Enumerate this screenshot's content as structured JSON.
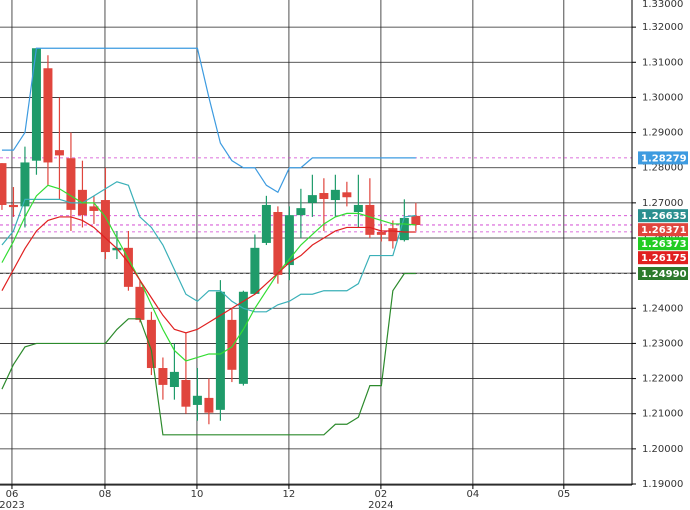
{
  "chart_data": {
    "type": "candlestick",
    "x": [
      0,
      1,
      2,
      3,
      4,
      5,
      6,
      7,
      8,
      9,
      10,
      11,
      12,
      13,
      14,
      15,
      16,
      17,
      18,
      19,
      20,
      21,
      22,
      23,
      24,
      25,
      26,
      27,
      28,
      29,
      30,
      31,
      32,
      33,
      34,
      35,
      36
    ],
    "candles": {
      "up_color": "#1f9b6a",
      "down_color": "#e0453d",
      "open": [
        1.2813,
        1.2694,
        1.269,
        1.282,
        1.3083,
        1.285,
        1.2827,
        1.2737,
        1.269,
        1.2708,
        1.2565,
        1.2572,
        1.2461,
        1.2367,
        1.223,
        1.2176,
        1.2196,
        1.2125,
        1.2145,
        1.2111,
        1.2367,
        1.2185,
        1.2441,
        1.2586,
        1.2674,
        1.2523,
        1.2665,
        1.27,
        1.2728,
        1.2708,
        1.273,
        1.2674,
        1.2694,
        1.2617,
        1.2628,
        1.2594,
        1.2663
      ],
      "high": [
        1.2813,
        1.2745,
        1.286,
        1.314,
        1.312,
        1.3,
        1.29,
        1.282,
        1.272,
        1.28,
        1.262,
        1.262,
        1.248,
        1.239,
        1.226,
        1.23,
        1.233,
        1.223,
        1.22,
        1.248,
        1.24,
        1.245,
        1.261,
        1.272,
        1.269,
        1.269,
        1.274,
        1.278,
        1.277,
        1.278,
        1.276,
        1.278,
        1.277,
        1.264,
        1.265,
        1.271,
        1.27
      ],
      "low": [
        1.268,
        1.266,
        1.263,
        1.278,
        1.275,
        1.271,
        1.262,
        1.263,
        1.264,
        1.254,
        1.254,
        1.245,
        1.236,
        1.221,
        1.214,
        1.214,
        1.21,
        1.208,
        1.207,
        1.208,
        1.219,
        1.218,
        1.244,
        1.258,
        1.247,
        1.248,
        1.26,
        1.266,
        1.262,
        1.266,
        1.269,
        1.263,
        1.26,
        1.259,
        1.257,
        1.259,
        1.262
      ],
      "close": [
        1.2694,
        1.2688,
        1.2815,
        1.314,
        1.2815,
        1.2835,
        1.268,
        1.2665,
        1.2677,
        1.256,
        1.2572,
        1.2461,
        1.2367,
        1.223,
        1.2182,
        1.2219,
        1.212,
        1.2151,
        1.2103,
        1.2447,
        1.2225,
        1.2447,
        1.2572,
        1.2694,
        1.2495,
        1.2665,
        1.2685,
        1.2722,
        1.2711,
        1.2737,
        1.2716,
        1.2694,
        1.2609,
        1.2609,
        1.2591,
        1.2657,
        1.2637
      ]
    },
    "series": [
      {
        "color": "#3d9be0",
        "values": [
          1.285,
          1.285,
          1.29,
          1.314,
          1.314,
          1.314,
          1.314,
          1.314,
          1.314,
          1.314,
          1.314,
          1.314,
          1.314,
          1.314,
          1.314,
          1.314,
          1.314,
          1.314,
          1.3,
          1.287,
          1.282,
          1.28,
          1.28,
          1.275,
          1.273,
          1.28,
          1.28,
          1.2828,
          1.2828,
          1.2828,
          1.2828,
          1.2828,
          1.2828,
          1.2828,
          1.2828,
          1.2828,
          1.2828
        ]
      },
      {
        "color": "#2c8a2c",
        "values": [
          1.217,
          1.224,
          1.229,
          1.23,
          1.23,
          1.23,
          1.23,
          1.23,
          1.23,
          1.23,
          1.234,
          1.237,
          1.237,
          1.228,
          1.204,
          1.204,
          1.204,
          1.204,
          1.204,
          1.204,
          1.204,
          1.204,
          1.204,
          1.204,
          1.204,
          1.204,
          1.204,
          1.204,
          1.204,
          1.207,
          1.207,
          1.209,
          1.218,
          1.218,
          1.245,
          1.2499,
          1.2499
        ]
      },
      {
        "color": "#3ab0b8",
        "values": [
          1.258,
          1.262,
          1.271,
          1.271,
          1.271,
          1.271,
          1.27,
          1.27,
          1.272,
          1.274,
          1.276,
          1.275,
          1.266,
          1.263,
          1.258,
          1.251,
          1.244,
          1.242,
          1.245,
          1.245,
          1.242,
          1.24,
          1.239,
          1.239,
          1.241,
          1.242,
          1.244,
          1.244,
          1.245,
          1.245,
          1.245,
          1.247,
          1.255,
          1.255,
          1.255,
          1.266,
          1.2664
        ]
      },
      {
        "color": "#33dd33",
        "values": [
          1.253,
          1.259,
          1.266,
          1.272,
          1.275,
          1.274,
          1.272,
          1.27,
          1.27,
          1.266,
          1.26,
          1.254,
          1.248,
          1.241,
          1.234,
          1.228,
          1.225,
          1.226,
          1.227,
          1.227,
          1.229,
          1.234,
          1.24,
          1.245,
          1.25,
          1.254,
          1.258,
          1.261,
          1.264,
          1.266,
          1.267,
          1.267,
          1.266,
          1.265,
          1.264,
          1.264,
          1.2637
        ]
      },
      {
        "color": "#e02020",
        "values": [
          1.245,
          1.251,
          1.257,
          1.262,
          1.265,
          1.266,
          1.266,
          1.265,
          1.263,
          1.26,
          1.257,
          1.253,
          1.248,
          1.243,
          1.238,
          1.234,
          1.233,
          1.234,
          1.236,
          1.238,
          1.24,
          1.242,
          1.244,
          1.247,
          1.25,
          1.253,
          1.255,
          1.258,
          1.26,
          1.262,
          1.263,
          1.263,
          1.263,
          1.262,
          1.262,
          1.2617,
          1.2617
        ]
      }
    ],
    "price_labels": [
      {
        "value": 1.28279,
        "label": "1.28279",
        "color": "#3d9be0"
      },
      {
        "value": 1.26635,
        "label": "1.26635",
        "color": "#2a8f8f"
      },
      {
        "value": 1.26371,
        "label": "1.26371",
        "color": "#e0453d"
      },
      {
        "value": 1.26373,
        "label": "1.26373",
        "color": "#22cc22"
      },
      {
        "value": 1.26175,
        "label": "1.26175",
        "color": "#e02020"
      },
      {
        "value": 1.2499,
        "label": "1.24990",
        "color": "#2c7a2c"
      }
    ],
    "xlim": [
      -0.17,
      54.8
    ],
    "xticks": [
      {
        "value": 0.87,
        "label": "06"
      },
      {
        "value": 8.96,
        "label": "08"
      },
      {
        "value": 16.96,
        "label": "10"
      },
      {
        "value": 24.96,
        "label": "12"
      },
      {
        "value": 32.96,
        "label": "02"
      },
      {
        "value": 40.96,
        "label": "04"
      },
      {
        "value": 48.87,
        "label": "05"
      }
    ],
    "year_labels": [
      {
        "value": 0.87,
        "label": "2023"
      },
      {
        "value": 32.96,
        "label": "2024"
      }
    ],
    "ylim": [
      1.19,
      1.33
    ],
    "yticks": [
      {
        "value": 1.19,
        "label": "1.19000"
      },
      {
        "value": 1.2,
        "label": "1.20000"
      },
      {
        "value": 1.21,
        "label": "1.21000"
      },
      {
        "value": 1.22,
        "label": "1.22000"
      },
      {
        "value": 1.23,
        "label": "1.23000"
      },
      {
        "value": 1.24,
        "label": "1.24000"
      },
      {
        "value": 1.25,
        "label": "1.25000"
      },
      {
        "value": 1.26,
        "label": "1.26000"
      },
      {
        "value": 1.27,
        "label": "1.27000"
      },
      {
        "value": 1.28,
        "label": "1.28000"
      },
      {
        "value": 1.29,
        "label": "1.29000"
      },
      {
        "value": 1.3,
        "label": "1.30000"
      },
      {
        "value": 1.31,
        "label": "1.31000"
      },
      {
        "value": 1.32,
        "label": "1.32000"
      },
      {
        "value": 1.33,
        "label": "1.33000"
      }
    ],
    "grid": true
  }
}
